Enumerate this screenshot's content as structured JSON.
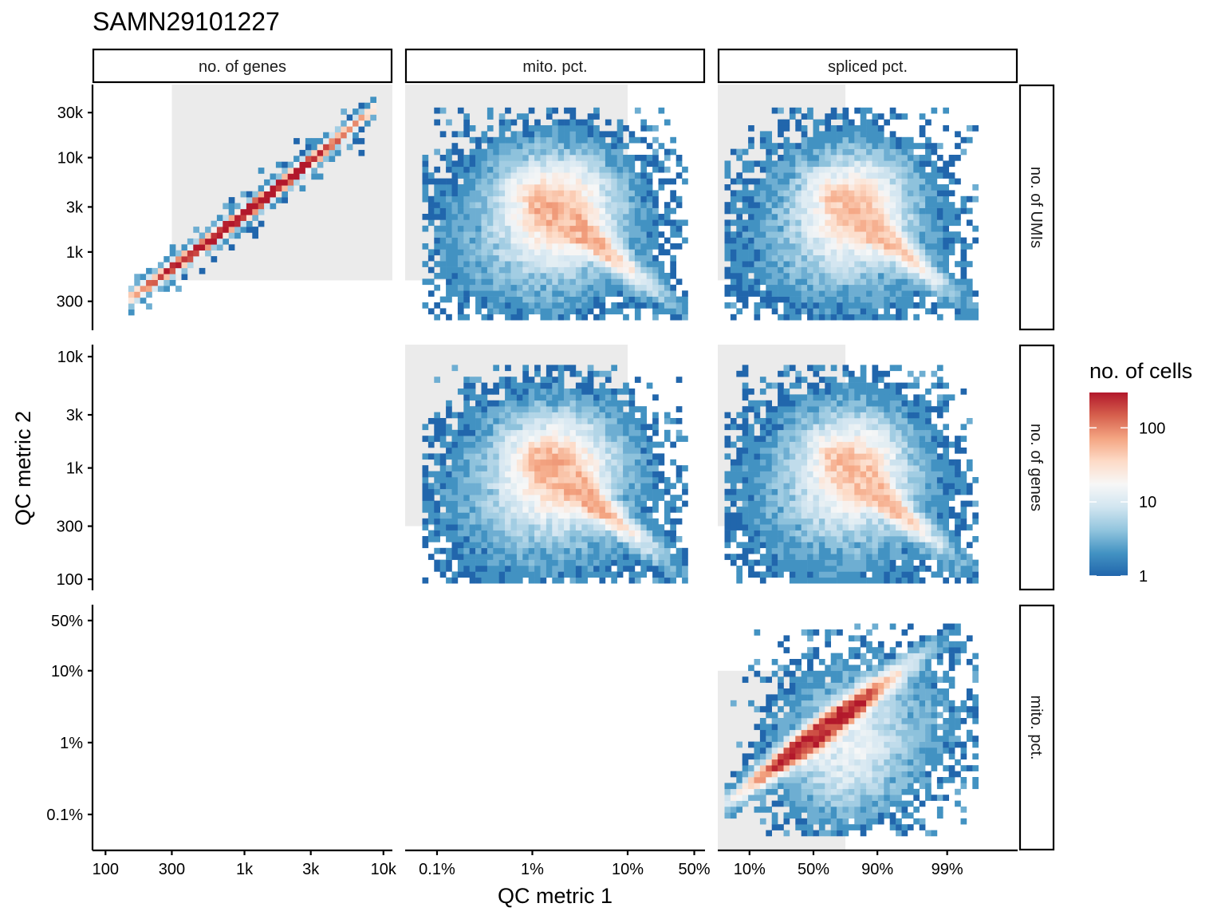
{
  "chart_data": {
    "type": "heatmap",
    "title": "SAMN29101227",
    "xlabel": "QC metric 1",
    "ylabel": "QC metric 2",
    "columns": [
      {
        "key": "genes",
        "strip": "no. of genes",
        "scale": "log10",
        "range": [
          85,
          11000
        ],
        "ticks": [
          100,
          300,
          1000,
          3000,
          10000
        ],
        "tick_labels": [
          "100",
          "300",
          "1k",
          "3k",
          "10k"
        ],
        "qc_threshold": 300
      },
      {
        "key": "mito",
        "strip": "mito. pct.",
        "scale": "log10-pct",
        "range": [
          0.05,
          60
        ],
        "ticks": [
          0.1,
          1,
          10,
          50
        ],
        "tick_labels": [
          "0.1%",
          "1%",
          "10%",
          "50%"
        ],
        "qc_threshold": 10
      },
      {
        "key": "spliced",
        "strip": "spliced pct.",
        "scale": "logit-pct",
        "range": [
          4,
          99.9
        ],
        "ticks": [
          10,
          50,
          90,
          99
        ],
        "tick_labels": [
          "10%",
          "50%",
          "90%",
          "99%"
        ],
        "qc_threshold": 75
      }
    ],
    "rows": [
      {
        "key": "umis",
        "strip": "no. of UMIs",
        "scale": "log10",
        "range": [
          160,
          55000
        ],
        "ticks": [
          300,
          1000,
          3000,
          10000,
          30000
        ],
        "tick_labels": [
          "300",
          "1k",
          "3k",
          "10k",
          "30k"
        ],
        "qc_threshold": 500
      },
      {
        "key": "genes",
        "strip": "no. of genes",
        "scale": "log10",
        "range": [
          85,
          12000
        ],
        "ticks": [
          100,
          300,
          1000,
          3000,
          10000
        ],
        "tick_labels": [
          "100",
          "300",
          "1k",
          "3k",
          "10k"
        ],
        "qc_threshold": 300
      },
      {
        "key": "mito",
        "strip": "mito. pct.",
        "scale": "log10-pct",
        "range": [
          0.035,
          75
        ],
        "ticks": [
          0.1,
          1,
          10,
          50
        ],
        "tick_labels": [
          "0.1%",
          "1%",
          "10%",
          "50%"
        ],
        "qc_threshold": 10
      }
    ],
    "panels": [
      {
        "row": "umis",
        "col": "genes",
        "pattern": "tight-diagonal",
        "peak_count": 300
      },
      {
        "row": "umis",
        "col": "mito",
        "pattern": "anticorrelated-cloud",
        "peak_count": 60
      },
      {
        "row": "umis",
        "col": "spliced",
        "pattern": "anticorrelated-cloud",
        "peak_count": 50
      },
      {
        "row": "genes",
        "col": "mito",
        "pattern": "anticorrelated-cloud",
        "peak_count": 60
      },
      {
        "row": "genes",
        "col": "spliced",
        "pattern": "anticorrelated-cloud",
        "peak_count": 50
      },
      {
        "row": "mito",
        "col": "spliced",
        "pattern": "correlated-band",
        "peak_count": 250
      }
    ],
    "legend": {
      "title": "no. of cells",
      "scale": "log10",
      "range": [
        1,
        300
      ],
      "breaks": [
        1,
        10,
        100
      ],
      "break_labels": [
        "1",
        "10",
        "100"
      ],
      "colors": [
        "#2166ac",
        "#4393c3",
        "#92c5de",
        "#d1e5f0",
        "#f7f7f7",
        "#fddbc7",
        "#f4a582",
        "#d6604d",
        "#b2182b"
      ]
    }
  }
}
